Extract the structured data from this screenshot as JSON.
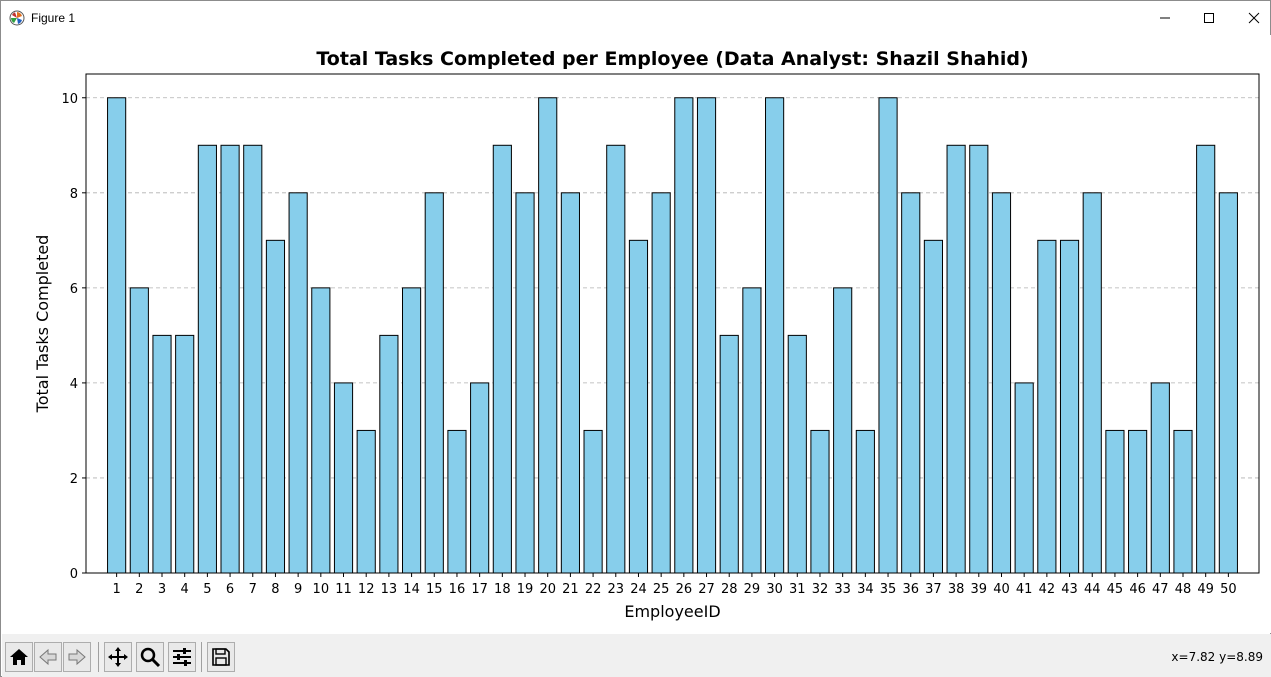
{
  "window": {
    "title": "Figure 1",
    "icon": "matplotlib-icon"
  },
  "toolbar": {
    "buttons": [
      {
        "name": "home-button",
        "icon": "home-icon"
      },
      {
        "name": "back-button",
        "icon": "back-arrow-icon"
      },
      {
        "name": "forward-button",
        "icon": "forward-arrow-icon"
      },
      {
        "name": "pan-button",
        "icon": "move-icon"
      },
      {
        "name": "zoom-button",
        "icon": "magnifier-icon"
      },
      {
        "name": "configure-subplots-button",
        "icon": "sliders-icon"
      },
      {
        "name": "save-button",
        "icon": "floppy-disk-icon"
      }
    ],
    "coords": "x=7.82 y=8.89"
  },
  "chart_data": {
    "type": "bar",
    "title": "Total Tasks Completed per Employee (Data Analyst: Shazil Shahid)",
    "xlabel": "EmployeeID",
    "ylabel": "Total Tasks Completed",
    "categories": [
      "1",
      "2",
      "3",
      "4",
      "5",
      "6",
      "7",
      "8",
      "9",
      "10",
      "11",
      "12",
      "13",
      "14",
      "15",
      "16",
      "17",
      "18",
      "19",
      "20",
      "21",
      "22",
      "23",
      "24",
      "25",
      "26",
      "27",
      "28",
      "29",
      "30",
      "31",
      "32",
      "33",
      "34",
      "35",
      "36",
      "37",
      "38",
      "39",
      "40",
      "41",
      "42",
      "43",
      "44",
      "45",
      "46",
      "47",
      "48",
      "49",
      "50"
    ],
    "values": [
      10,
      6,
      5,
      5,
      9,
      9,
      9,
      7,
      8,
      6,
      4,
      3,
      5,
      6,
      8,
      3,
      4,
      9,
      8,
      10,
      8,
      3,
      9,
      7,
      8,
      10,
      10,
      5,
      6,
      10,
      5,
      3,
      6,
      3,
      10,
      8,
      7,
      9,
      9,
      8,
      4,
      7,
      7,
      8,
      3,
      3,
      4,
      3,
      9,
      8
    ],
    "yticks": [
      "0",
      "2",
      "4",
      "6",
      "8",
      "10"
    ],
    "ylim": [
      0,
      10.5
    ],
    "grid": "y-dashed",
    "bar_color": "#87ceeb",
    "edge_color": "#000000"
  }
}
